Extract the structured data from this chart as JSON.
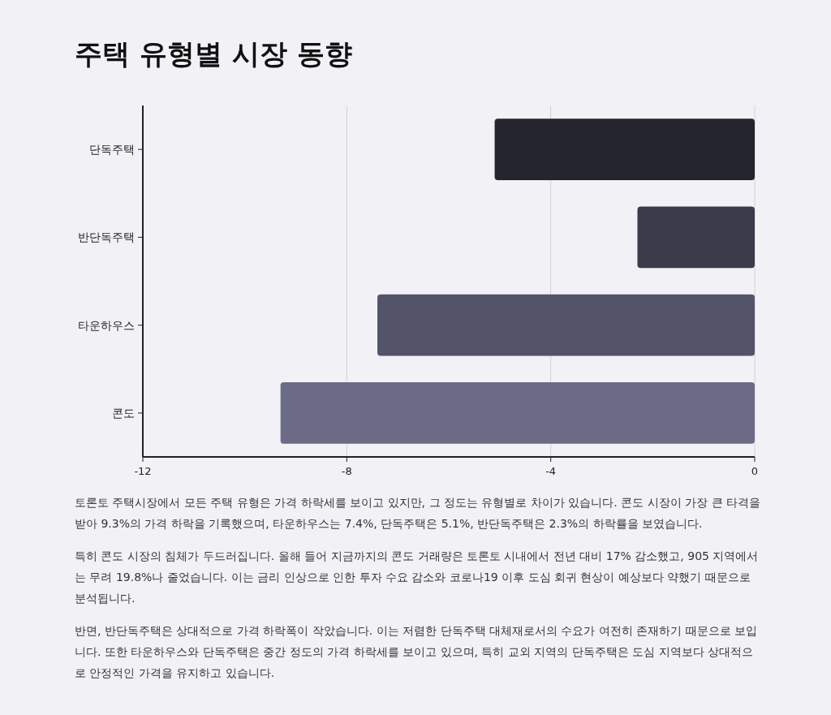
{
  "chart_data": {
    "type": "bar",
    "orientation": "horizontal",
    "title": "주택 유형별 시장 동향",
    "categories": [
      "단독주택",
      "반단독주택",
      "타운하우스",
      "콘도"
    ],
    "values": [
      -5.1,
      -2.3,
      -7.4,
      -9.3
    ],
    "colors": [
      "#25252d",
      "#3c3b49",
      "#53536a",
      "#6b6b87"
    ],
    "xlim": [
      -12,
      0
    ],
    "xticks": [
      -12,
      -8,
      -4,
      0
    ],
    "grid": "x",
    "annotations": [
      "토론토 주택시장에서 모든 주택 유형은 가격 하락세를 보이고 있지만, 그 정도는 유형별로 차이가 있습니다. 콘도 시장이 가장 큰 타격을 받아 9.3%의 가격 하락을 기록했으며, 타운하우스는 7.4%, 단독주택은 5.1%, 반단독주택은 2.3%의 하락률을 보였습니다.",
      "특히 콘도 시장의 침체가 두드러집니다. 올해 들어 지금까지의 콘도 거래량은 토론토 시내에서 전년 대비 17% 감소했고, 905 지역에서는 무려 19.8%나 줄었습니다. 이는 금리 인상으로 인한 투자 수요 감소와 코로나19 이후 도심 회귀 현상이 예상보다 약했기 때문으로 분석됩니다.",
      "반면, 반단독주택은 상대적으로 가격 하락폭이 작았습니다. 이는 저렴한 단독주택 대체재로서의 수요가 여전히 존재하기 때문으로 보입니다. 또한 타운하우스와 단독주택은 중간 정도의 가격 하락세를 보이고 있으며, 특히 교외 지역의 단독주택은 도심 지역보다 상대적으로 안정적인 가격을 유지하고 있습니다."
    ]
  }
}
